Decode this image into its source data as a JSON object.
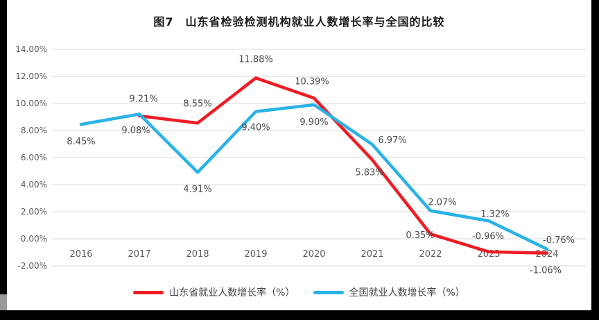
{
  "title": "图7　山东省检验检测机构就业人数增长率与全国的比较",
  "frame": {
    "background": "#ffffff",
    "border_bar_color": "#000000",
    "scroll_thumb_color": "#9a9a9a"
  },
  "chart_data": {
    "type": "line",
    "title": "图7　山东省检验检测机构就业人数增长率与全国的比较",
    "x": [
      2016,
      2017,
      2018,
      2019,
      2020,
      2021,
      2022,
      2023,
      2024
    ],
    "xlabel": "",
    "ylabel": "",
    "ylim": [
      -2,
      14
    ],
    "grid": "horizontal",
    "gridline_color": "#d9d9d9",
    "legend_position": "bottom",
    "y_axis": {
      "tick_labels": [
        "14.00%",
        "12.00%",
        "10.00%",
        "8.00%",
        "6.00%",
        "4.00%",
        "2.00%",
        "0.00%",
        "-2.00%"
      ],
      "tick_values": [
        14,
        12,
        10,
        8,
        6,
        4,
        2,
        0,
        -2
      ]
    },
    "series": [
      {
        "name": "山东省就业人数增长率（%）",
        "color": "#ee1c25",
        "points": [
          {
            "year": 2017,
            "value": 9.08,
            "label": "9.08%",
            "dx": -5,
            "dy": 21
          },
          {
            "year": 2018,
            "value": 8.55,
            "label": "8.55%",
            "dx": 0,
            "dy": -28
          },
          {
            "year": 2019,
            "value": 11.88,
            "label": "11.88%",
            "dx": 0,
            "dy": -27
          },
          {
            "year": 2020,
            "value": 10.39,
            "label": "10.39%",
            "dx": -3,
            "dy": -24
          },
          {
            "year": 2021,
            "value": 5.83,
            "label": "5.83%",
            "dx": -4,
            "dy": 18
          },
          {
            "year": 2022,
            "value": 0.35,
            "label": "0.35%",
            "dx": -15,
            "dy": 2
          },
          {
            "year": 2023,
            "value": -0.96,
            "label": "-0.96%",
            "dx": -1,
            "dy": -22
          },
          {
            "year": 2024,
            "value": -1.06,
            "label": "-1.06%",
            "dx": -2,
            "dy": 25
          }
        ]
      },
      {
        "name": "全国就业人数增长率（%）",
        "color": "#29b2e5",
        "points": [
          {
            "year": 2016,
            "value": 8.45,
            "label": "8.45%",
            "dx": 0,
            "dy": 25
          },
          {
            "year": 2017,
            "value": 9.21,
            "label": "9.21%",
            "dx": 6,
            "dy": -22
          },
          {
            "year": 2018,
            "value": 4.91,
            "label": "4.91%",
            "dx": 0,
            "dy": 24
          },
          {
            "year": 2019,
            "value": 9.4,
            "label": "9.40%",
            "dx": 0,
            "dy": 23
          },
          {
            "year": 2020,
            "value": 9.9,
            "label": "9.90%",
            "dx": 0,
            "dy": 25
          },
          {
            "year": 2021,
            "value": 6.97,
            "label": "6.97%",
            "dx": 29,
            "dy": -6
          },
          {
            "year": 2022,
            "value": 2.07,
            "label": "2.07%",
            "dx": 17,
            "dy": -12
          },
          {
            "year": 2023,
            "value": 1.32,
            "label": "1.32%",
            "dx": 9,
            "dy": -10
          },
          {
            "year": 2024,
            "value": -0.76,
            "label": "-0.76%",
            "dx": 17,
            "dy": -13
          }
        ]
      }
    ]
  }
}
